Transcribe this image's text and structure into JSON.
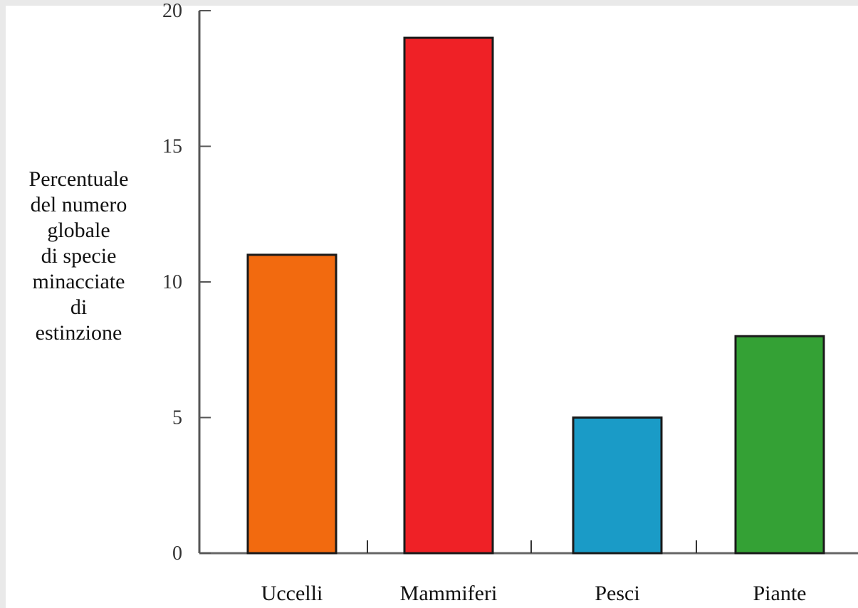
{
  "chart_data": {
    "type": "bar",
    "categories": [
      "Uccelli",
      "Mammiferi",
      "Pesci",
      "Piante"
    ],
    "values": [
      11,
      19,
      5,
      8
    ],
    "colors": [
      "#f26a0f",
      "#ef2126",
      "#1a9bc7",
      "#34a135"
    ],
    "ylabel_lines": [
      "Percentuale",
      "del numero",
      "globale",
      "di specie",
      "minacciate",
      "di",
      "estinzione"
    ],
    "ylim": [
      0,
      20
    ],
    "yticks": [
      "0",
      "5",
      "10",
      "15",
      "20"
    ],
    "grid": false,
    "legend": "none"
  }
}
